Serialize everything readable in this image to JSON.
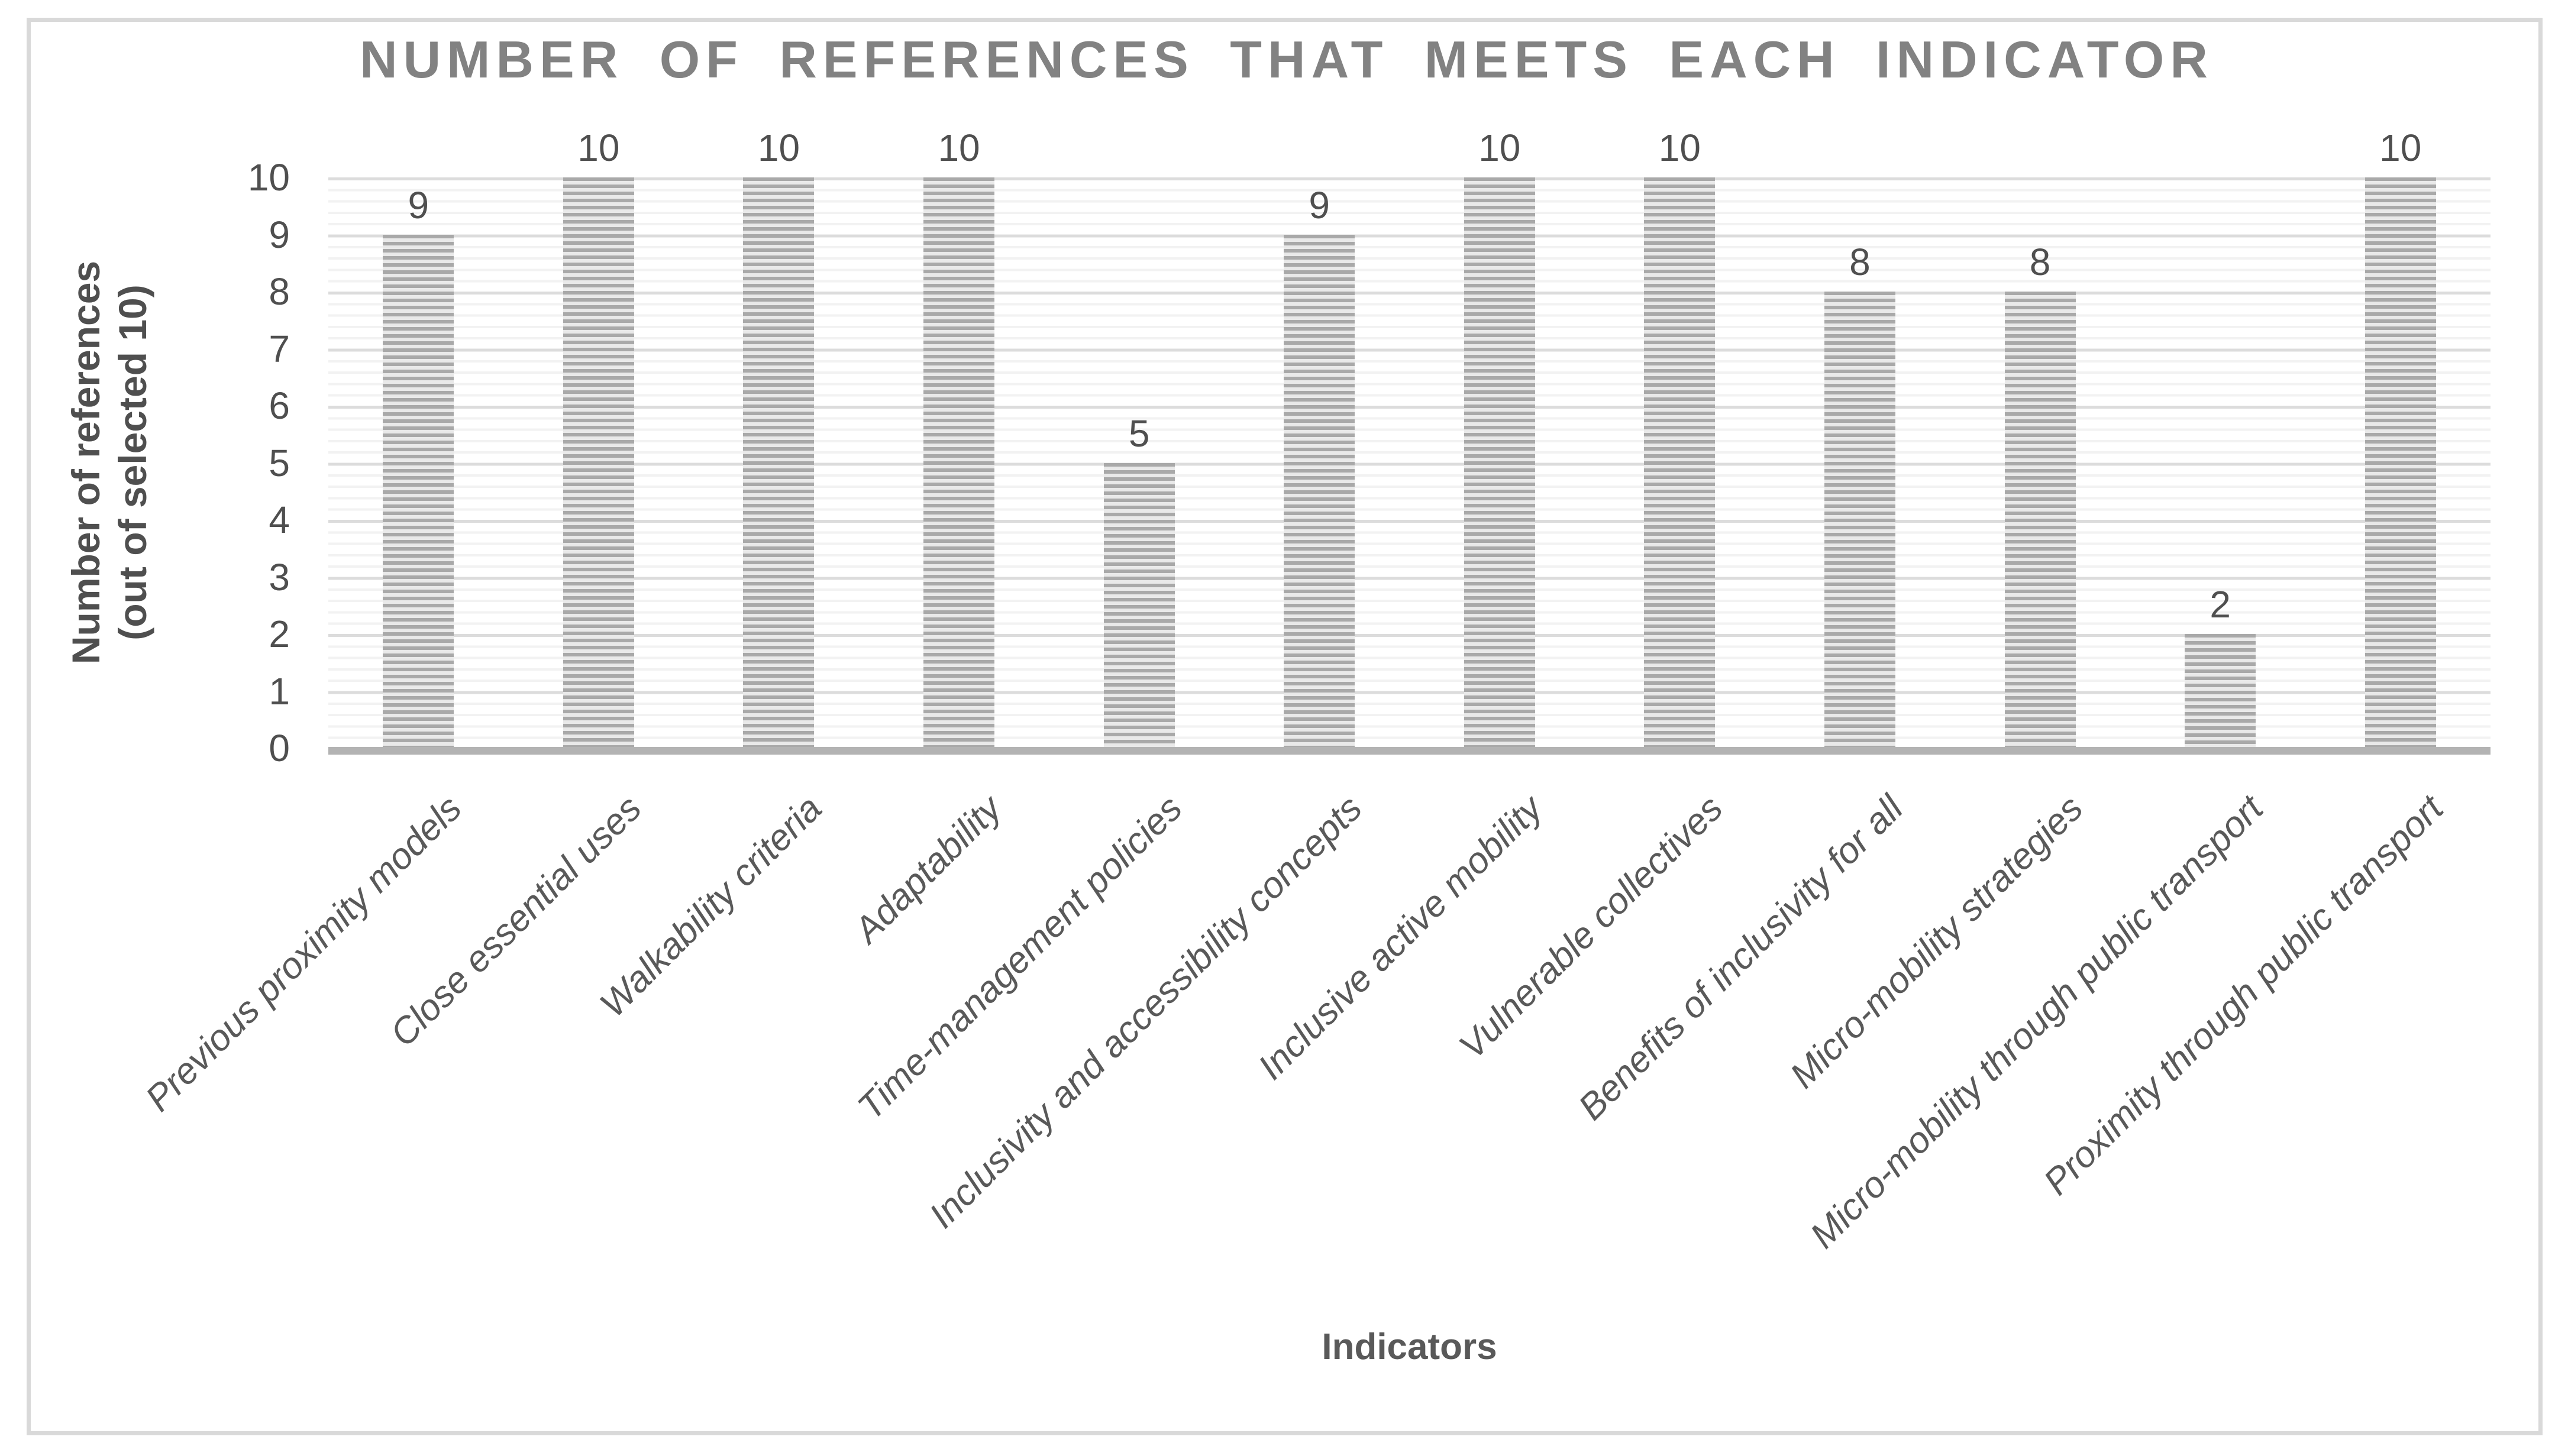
{
  "figure": {
    "title": "NUMBER OF REFERENCES THAT MEETS EACH INDICATOR"
  },
  "y_axis": {
    "title_line1": "Number of references",
    "title_line2": "(out of selected 10)",
    "tick_labels": [
      "0",
      "1",
      "2",
      "3",
      "4",
      "5",
      "6",
      "7",
      "8",
      "9",
      "10"
    ]
  },
  "x_axis": {
    "title": "Indicators"
  },
  "chart_data": {
    "type": "bar",
    "title": "NUMBER OF REFERENCES THAT MEETS EACH INDICATOR",
    "categories": [
      "Previous proximity models",
      "Close essential uses",
      "Walkability criteria",
      "Adaptability",
      "Time-management policies",
      "Inclusivity and accessibility concepts",
      "Inclusive active mobility",
      "Vulnerable collectives",
      "Benefits of inclusivity for all",
      "Micro-mobility strategies",
      "Micro-mobility through public transport",
      "Proximity through public transport"
    ],
    "values": [
      9,
      10,
      10,
      10,
      5,
      9,
      10,
      10,
      8,
      8,
      2,
      10
    ],
    "data_labels": [
      "9",
      "10",
      "10",
      "10",
      "5",
      "9",
      "10",
      "10",
      "8",
      "8",
      "2",
      "10"
    ],
    "xlabel": "Indicators",
    "ylabel": "Number of references (out of selected 10)",
    "ylim": [
      0,
      10
    ],
    "ytick_step": 1,
    "minor_gridline_step": 0.2,
    "grid": "on",
    "legend_position": "none",
    "bar_fill": "horizontal-stripe-pattern",
    "category_label_rotation_deg": 45,
    "colors": {
      "bar_stripe_dark": "#a9a9a9",
      "bar_stripe_light": "#e9e9e9",
      "major_gridline": "#dcdcdc",
      "minor_gridline": "#f2f2f2",
      "axis_line": "#b3b3b3",
      "title_text": "#828282",
      "label_text": "#4f4f4f",
      "category_text": "#595959",
      "figure_border": "#d9d9d9"
    }
  }
}
